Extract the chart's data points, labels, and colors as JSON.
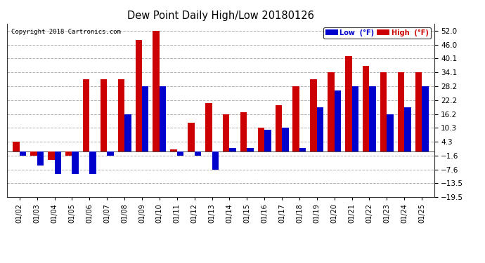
{
  "title": "Dew Point Daily High/Low 20180126",
  "copyright": "Copyright 2018 Cartronics.com",
  "dates": [
    "01/02",
    "01/03",
    "01/04",
    "01/05",
    "01/06",
    "01/07",
    "01/08",
    "01/09",
    "01/10",
    "01/11",
    "01/12",
    "01/13",
    "01/14",
    "01/15",
    "01/16",
    "01/17",
    "01/18",
    "01/19",
    "01/20",
    "01/21",
    "01/22",
    "01/23",
    "01/24",
    "01/25"
  ],
  "low": [
    -1.6,
    -5.8,
    -9.4,
    -9.4,
    -9.4,
    -1.6,
    16.2,
    28.2,
    28.2,
    -1.6,
    -1.6,
    -7.6,
    1.6,
    1.6,
    9.4,
    10.3,
    1.6,
    19.0,
    26.2,
    28.2,
    28.2,
    16.2,
    19.0,
    28.2
  ],
  "high": [
    4.3,
    -1.6,
    -3.6,
    -1.6,
    31.0,
    31.0,
    31.0,
    48.0,
    52.0,
    1.0,
    12.4,
    21.0,
    16.2,
    17.0,
    10.3,
    20.0,
    28.2,
    31.0,
    34.1,
    41.0,
    37.0,
    34.1,
    34.1,
    34.1
  ],
  "low_color": "#0000cc",
  "high_color": "#cc0000",
  "background_color": "#ffffff",
  "grid_color": "#b0b0b0",
  "ylim": [
    -19.5,
    55.0
  ],
  "yticks": [
    -19.5,
    -13.5,
    -7.6,
    -1.6,
    4.3,
    10.3,
    16.2,
    22.2,
    28.2,
    34.1,
    40.1,
    46.0,
    52.0
  ],
  "bar_width": 0.38
}
